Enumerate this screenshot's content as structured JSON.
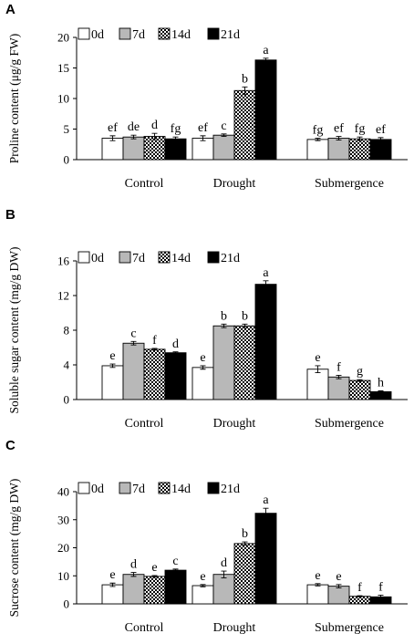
{
  "chart_data": [
    {
      "type": "bar",
      "panel": "A",
      "ylabel": "Proline content (μg/g FW)",
      "ylim": [
        0,
        20
      ],
      "yticks": [
        0,
        5,
        10,
        15,
        20
      ],
      "categories": [
        "Control",
        "Drought",
        "Submergence"
      ],
      "series": [
        {
          "name": "0d",
          "values": [
            3.5,
            3.5,
            3.3
          ],
          "errors": [
            0.4,
            0.4,
            0.2
          ],
          "labels": [
            "ef",
            "ef",
            "fg"
          ]
        },
        {
          "name": "7d",
          "values": [
            3.7,
            4.0,
            3.5
          ],
          "errors": [
            0.3,
            0.2,
            0.3
          ],
          "labels": [
            "de",
            "c",
            "ef"
          ]
        },
        {
          "name": "14d",
          "values": [
            3.8,
            11.3,
            3.4
          ],
          "errors": [
            0.5,
            0.6,
            0.3
          ],
          "labels": [
            "d",
            "b",
            "fg"
          ]
        },
        {
          "name": "21d",
          "values": [
            3.4,
            16.3,
            3.3
          ],
          "errors": [
            0.3,
            0.3,
            0.3
          ],
          "labels": [
            "fg",
            "a",
            "ef"
          ]
        }
      ]
    },
    {
      "type": "bar",
      "panel": "B",
      "ylabel": "Soluble sugar content (mg/g DW)",
      "ylim": [
        0,
        16
      ],
      "yticks": [
        0,
        4,
        8,
        12,
        16
      ],
      "categories": [
        "Control",
        "Drought",
        "Submergence"
      ],
      "series": [
        {
          "name": "0d",
          "values": [
            3.9,
            3.7,
            3.5
          ],
          "errors": [
            0.2,
            0.2,
            0.4
          ],
          "labels": [
            "e",
            "e",
            "e"
          ]
        },
        {
          "name": "7d",
          "values": [
            6.5,
            8.5,
            2.6
          ],
          "errors": [
            0.2,
            0.2,
            0.2
          ],
          "labels": [
            "c",
            "b",
            "f"
          ]
        },
        {
          "name": "14d",
          "values": [
            5.8,
            8.5,
            2.2
          ],
          "errors": [
            0.1,
            0.2,
            0.1
          ],
          "labels": [
            "f",
            "b",
            "g"
          ]
        },
        {
          "name": "21d",
          "values": [
            5.4,
            13.3,
            0.9
          ],
          "errors": [
            0.1,
            0.4,
            0.1
          ],
          "labels": [
            "d",
            "a",
            "h"
          ]
        }
      ]
    },
    {
      "type": "bar",
      "panel": "C",
      "ylabel": "Sucrose content (mg/g DW)",
      "ylim": [
        0,
        40
      ],
      "yticks": [
        0,
        10,
        20,
        30,
        40
      ],
      "categories": [
        "Control",
        "Drought",
        "Submergence"
      ],
      "series": [
        {
          "name": "0d",
          "values": [
            6.8,
            6.5,
            6.8
          ],
          "errors": [
            0.6,
            0.4,
            0.4
          ],
          "labels": [
            "e",
            "e",
            "e"
          ]
        },
        {
          "name": "7d",
          "values": [
            10.5,
            10.5,
            6.3
          ],
          "errors": [
            0.7,
            1.2,
            0.6
          ],
          "labels": [
            "d",
            "d",
            "e"
          ]
        },
        {
          "name": "14d",
          "values": [
            9.8,
            21.5,
            2.7
          ],
          "errors": [
            0.3,
            0.6,
            0.2
          ],
          "labels": [
            "e",
            "b",
            "f"
          ]
        },
        {
          "name": "21d",
          "values": [
            12.0,
            32.3,
            2.5
          ],
          "errors": [
            0.4,
            1.8,
            0.6
          ],
          "labels": [
            "c",
            "a",
            "f"
          ]
        }
      ]
    }
  ],
  "legend": [
    "0d",
    "7d",
    "14d",
    "21d"
  ],
  "colors": {
    "0d": "#ffffff",
    "7d": "#b8b8b8",
    "14d": "checker",
    "21d": "#000000"
  }
}
